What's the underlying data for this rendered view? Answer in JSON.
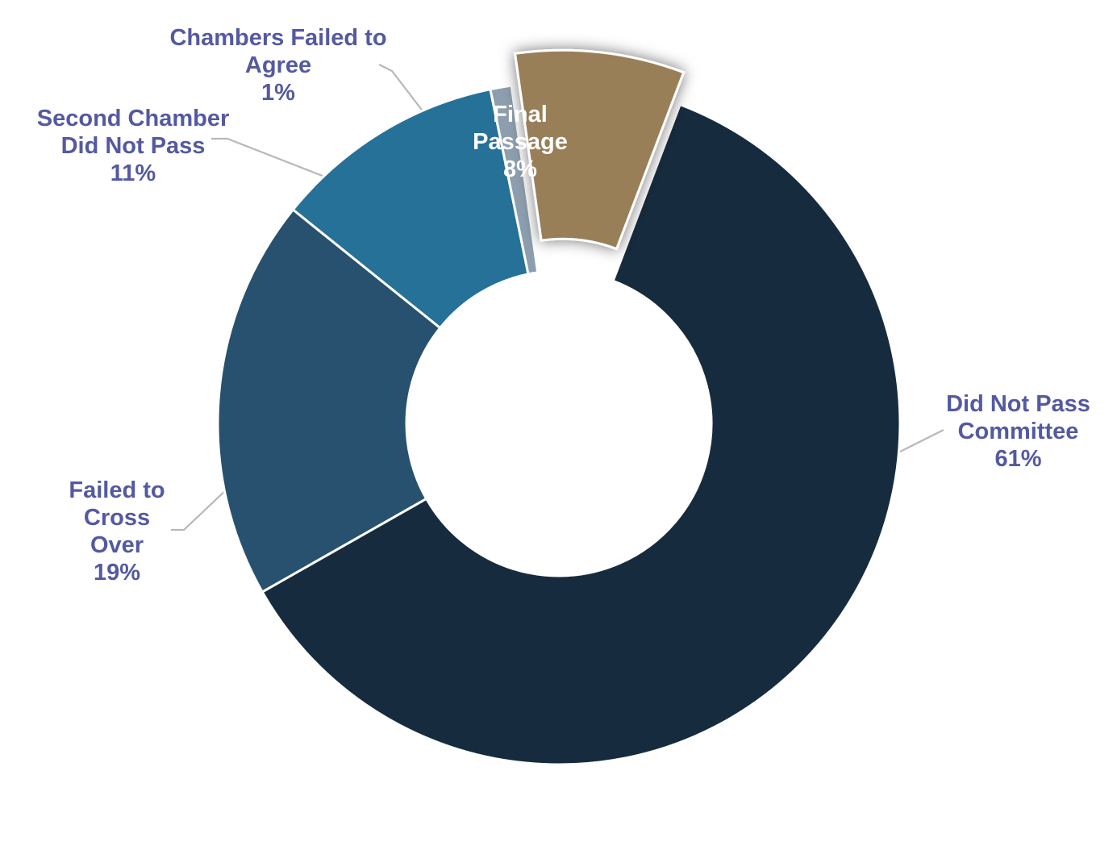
{
  "chart_data": {
    "type": "pie",
    "title": "",
    "slices": [
      {
        "key": "final",
        "lines": [
          "Final",
          "Passage",
          "8%"
        ],
        "value": 8,
        "color": "#987f58",
        "exploded": true,
        "label_inside": true
      },
      {
        "key": "committee",
        "lines": [
          "Did Not Pass",
          "Committee",
          "61%"
        ],
        "value": 61,
        "color": "#172b3e"
      },
      {
        "key": "crossover",
        "lines": [
          "Failed to",
          "Cross",
          "Over",
          "19%"
        ],
        "value": 19,
        "color": "#27516e"
      },
      {
        "key": "second",
        "lines": [
          "Second Chamber",
          "Did Not Pass",
          "11%"
        ],
        "value": 11,
        "color": "#267198"
      },
      {
        "key": "chambers",
        "lines": [
          "Chambers Failed to",
          "Agree",
          "1%"
        ],
        "value": 1,
        "color": "#8d9eae"
      }
    ],
    "colors": {
      "label_text": "#5459a0",
      "leader_line": "#b8b8b8",
      "slice_border": "#ffffff"
    }
  }
}
